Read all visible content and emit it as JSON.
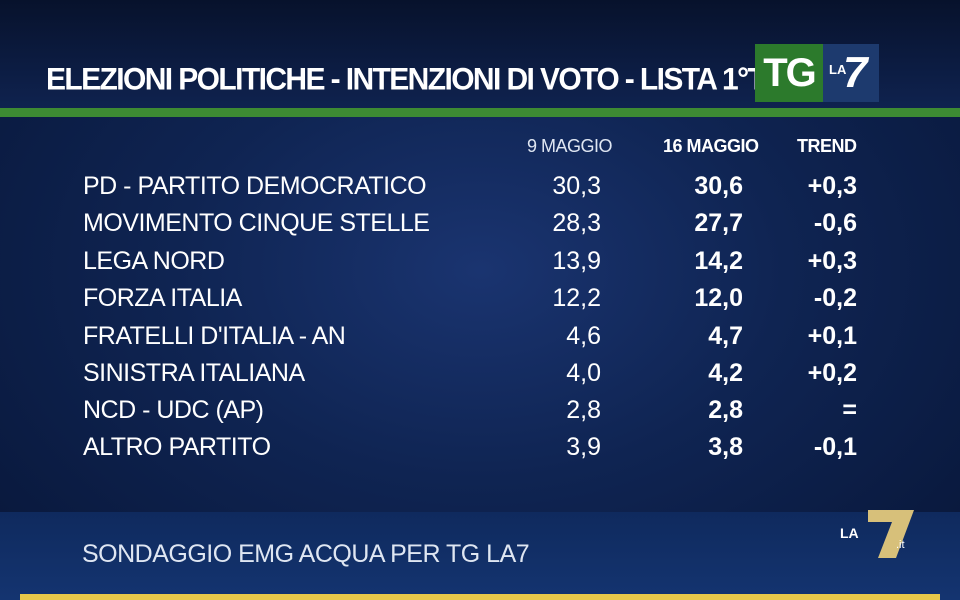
{
  "title": "ELEZIONI POLITICHE - INTENZIONI DI VOTO - LISTA 1°TURNO",
  "logo": {
    "tg": "TG",
    "la": "LA",
    "seven": "7"
  },
  "chart_data": {
    "type": "table",
    "columns": [
      "9 MAGGIO",
      "16 MAGGIO",
      "TREND"
    ],
    "rows": [
      {
        "party": "PD - PARTITO DEMOCRATICO",
        "prev": "30,3",
        "curr": "30,6",
        "trend": "+0,3"
      },
      {
        "party": "MOVIMENTO CINQUE STELLE",
        "prev": "28,3",
        "curr": "27,7",
        "trend": "-0,6"
      },
      {
        "party": "LEGA NORD",
        "prev": "13,9",
        "curr": "14,2",
        "trend": "+0,3"
      },
      {
        "party": "FORZA ITALIA",
        "prev": "12,2",
        "curr": "12,0",
        "trend": "-0,2"
      },
      {
        "party": "FRATELLI D'ITALIA - AN",
        "prev": "4,6",
        "curr": "4,7",
        "trend": "+0,1"
      },
      {
        "party": "SINISTRA ITALIANA",
        "prev": "4,0",
        "curr": "4,2",
        "trend": "+0,2"
      },
      {
        "party": "NCD - UDC (AP)",
        "prev": "2,8",
        "curr": "2,8",
        "trend": "="
      },
      {
        "party": "ALTRO PARTITO",
        "prev": "3,9",
        "curr": "3,8",
        "trend": "-0,1"
      }
    ]
  },
  "source": "SONDAGGIO EMG ACQUA PER TG LA7",
  "corner_logo": {
    "la": "LA",
    "seven": "7",
    "it": ".it"
  },
  "colors": {
    "background": "#0f2452",
    "accent_green": "#3d8b33",
    "accent_yellow": "#e8c84a",
    "text": "#ffffff"
  }
}
